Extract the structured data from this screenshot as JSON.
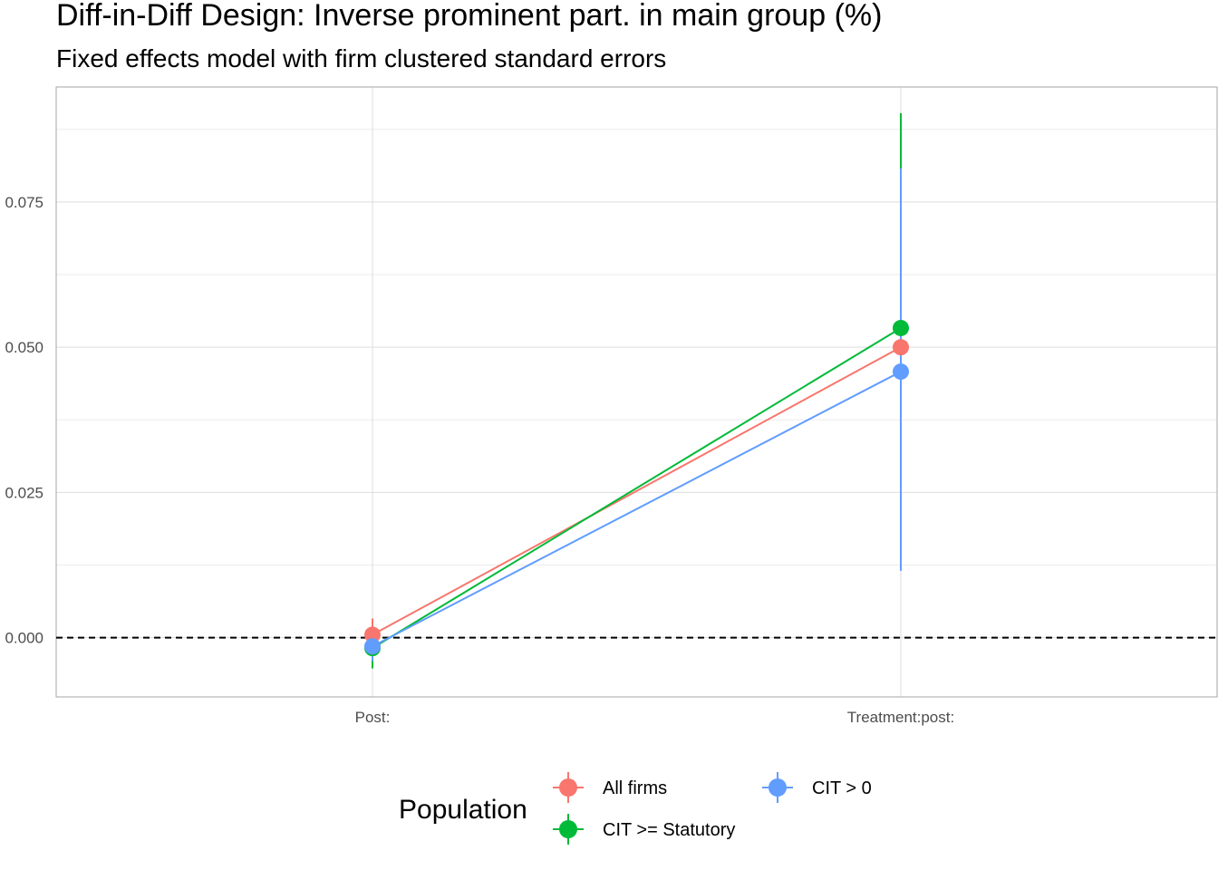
{
  "chart_data": {
    "type": "scatter",
    "title": "Diff-in-Diff Design: Inverse prominent part. in main group (%)",
    "subtitle": "Fixed effects model with firm clustered standard errors",
    "xlabel": "",
    "ylabel": "",
    "categories": [
      "Post:",
      "Treatment:post:"
    ],
    "y_ticks": [
      0.0,
      0.025,
      0.05,
      0.075
    ],
    "y_tick_labels": [
      "0.000",
      "0.025",
      "0.050",
      "0.075"
    ],
    "ylim": [
      -0.0102,
      0.0948
    ],
    "reference_line": 0,
    "grid": true,
    "legend_position": "bottom",
    "legend_title": "Population",
    "series": [
      {
        "name": "All firms",
        "color": "#F8766D",
        "values": [
          0.0005,
          0.05
        ],
        "lower": [
          -0.002,
          0.05
        ],
        "upper": [
          0.0033,
          0.05
        ]
      },
      {
        "name": "CIT >= Statutory",
        "color": "#00BA38",
        "values": [
          -0.0018,
          0.0533
        ],
        "lower": [
          -0.0053,
          0.0533
        ],
        "upper": [
          0.0015,
          0.0903
        ]
      },
      {
        "name": "CIT > 0",
        "color": "#619CFF",
        "values": [
          -0.0015,
          0.0458
        ],
        "lower": [
          -0.004,
          0.0115
        ],
        "upper": [
          0.001,
          0.0808
        ]
      }
    ]
  }
}
